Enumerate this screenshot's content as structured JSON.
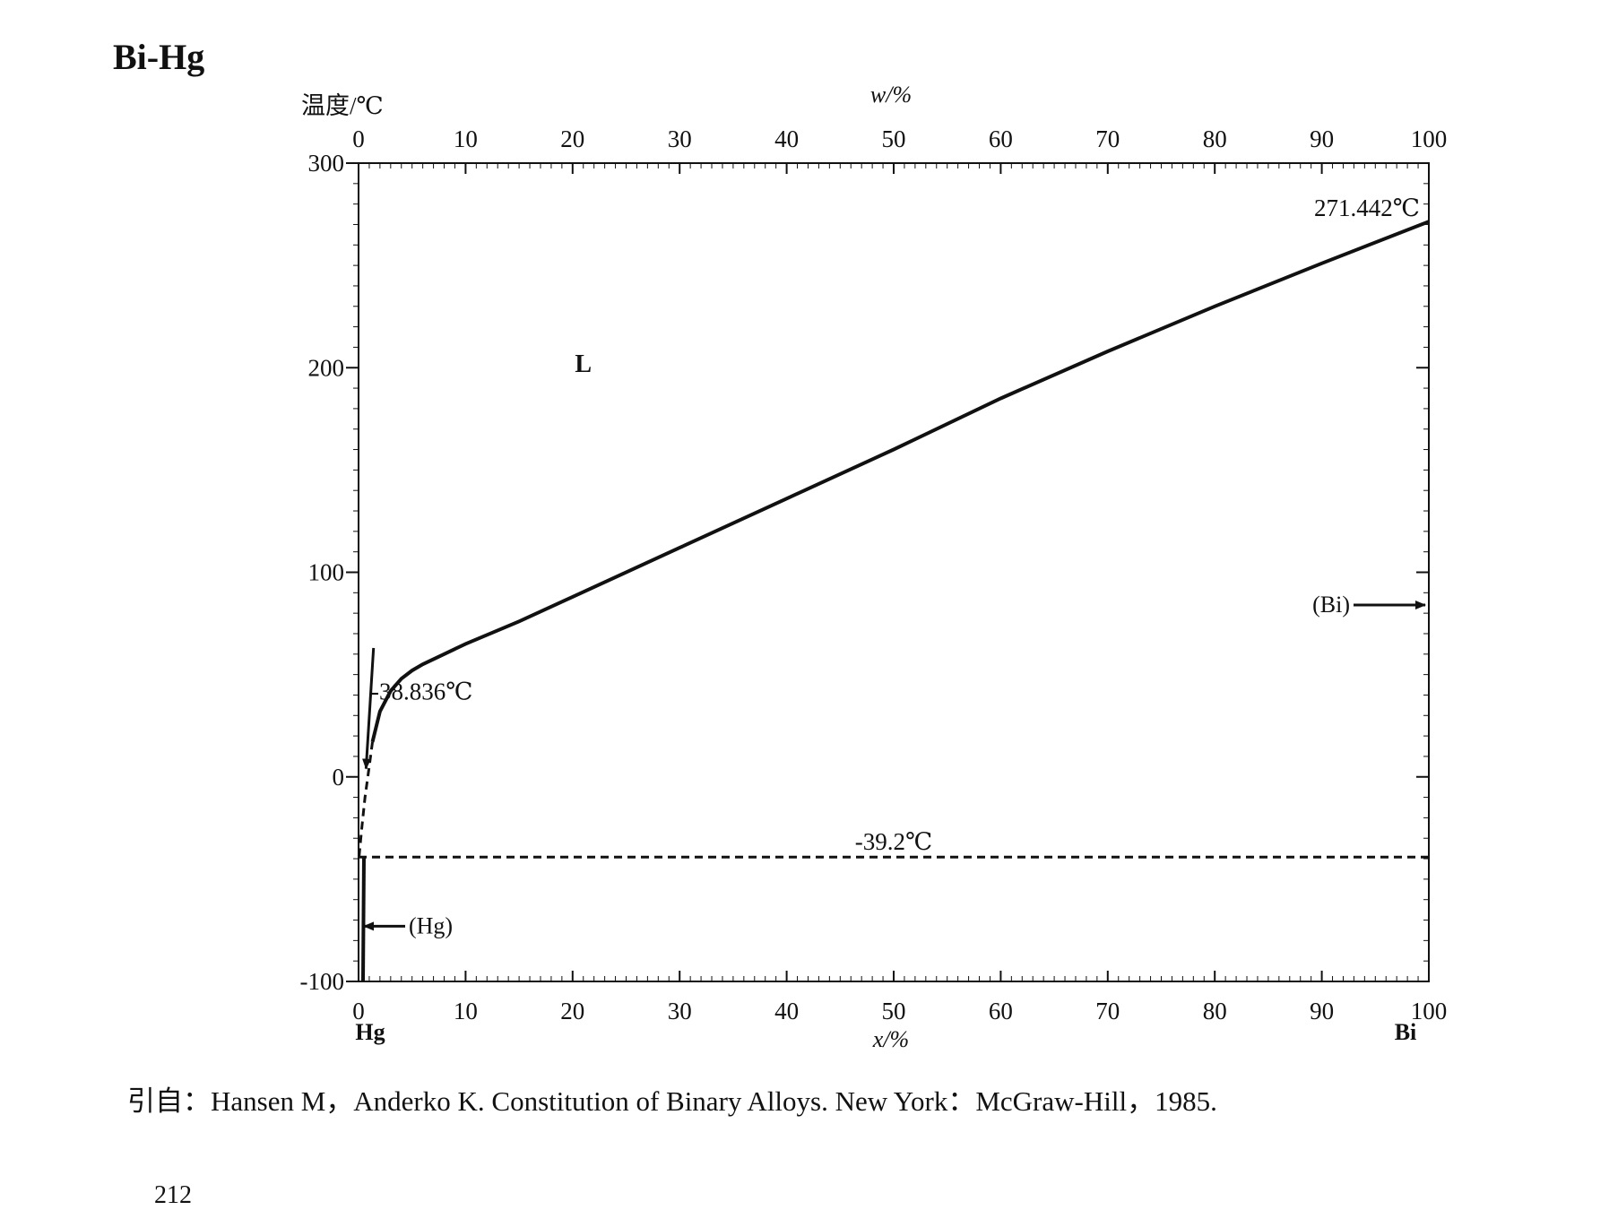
{
  "page": {
    "title": "Bi-Hg",
    "caption": "引自：Hansen M，Anderko K. Constitution of Binary Alloys. New York：McGraw-Hill，1985.",
    "page_number": "212"
  },
  "chart_data": {
    "type": "line",
    "title": "",
    "ylabel": "温度/℃",
    "xlabel": "x/%",
    "x2label": "w/%",
    "ylim": [
      -100,
      300
    ],
    "xlim": [
      0,
      100
    ],
    "x_ticks": [
      "0",
      "10",
      "20",
      "30",
      "40",
      "50",
      "60",
      "70",
      "80",
      "90",
      "100"
    ],
    "x2_ticks": [
      "0",
      "10",
      "20",
      "30",
      "40",
      "50",
      "60",
      "70",
      "80",
      "90",
      "100"
    ],
    "y_ticks": [
      "-100",
      "0",
      "100",
      "200",
      "300"
    ],
    "left_element": "Hg",
    "right_element": "Bi",
    "series": [
      {
        "style": "solid",
        "x": [
          1.3,
          2,
          3,
          4,
          5,
          6,
          8,
          10,
          15,
          20,
          30,
          40,
          50,
          60,
          70,
          80,
          90,
          100
        ],
        "y": [
          17,
          32,
          42,
          48,
          52,
          55,
          60,
          65,
          76,
          88,
          112,
          136,
          160,
          185,
          208,
          230,
          251,
          271.442
        ]
      },
      {
        "style": "dashed",
        "x": [
          0.05,
          0.3,
          0.6,
          1.0,
          1.3
        ],
        "y": [
          -38.836,
          -25,
          -10,
          5,
          17
        ]
      },
      {
        "style": "dashed",
        "x": [
          0,
          100
        ],
        "y": [
          -39.2,
          -39.2
        ]
      }
    ],
    "annotations": [
      {
        "text": "L",
        "x": 21,
        "y": 198
      },
      {
        "text": "271.442℃",
        "x": 100,
        "y": 271.442
      },
      {
        "text": "-38.836℃",
        "x": 0,
        "y": -38.836
      },
      {
        "text": "-39.2℃",
        "x": 50,
        "y": -39.2
      },
      {
        "text": "(Bi)",
        "x": 100,
        "y": 84
      },
      {
        "text": "(Hg)",
        "x": 0,
        "y": -73
      }
    ],
    "grid": false,
    "legend": "none"
  }
}
